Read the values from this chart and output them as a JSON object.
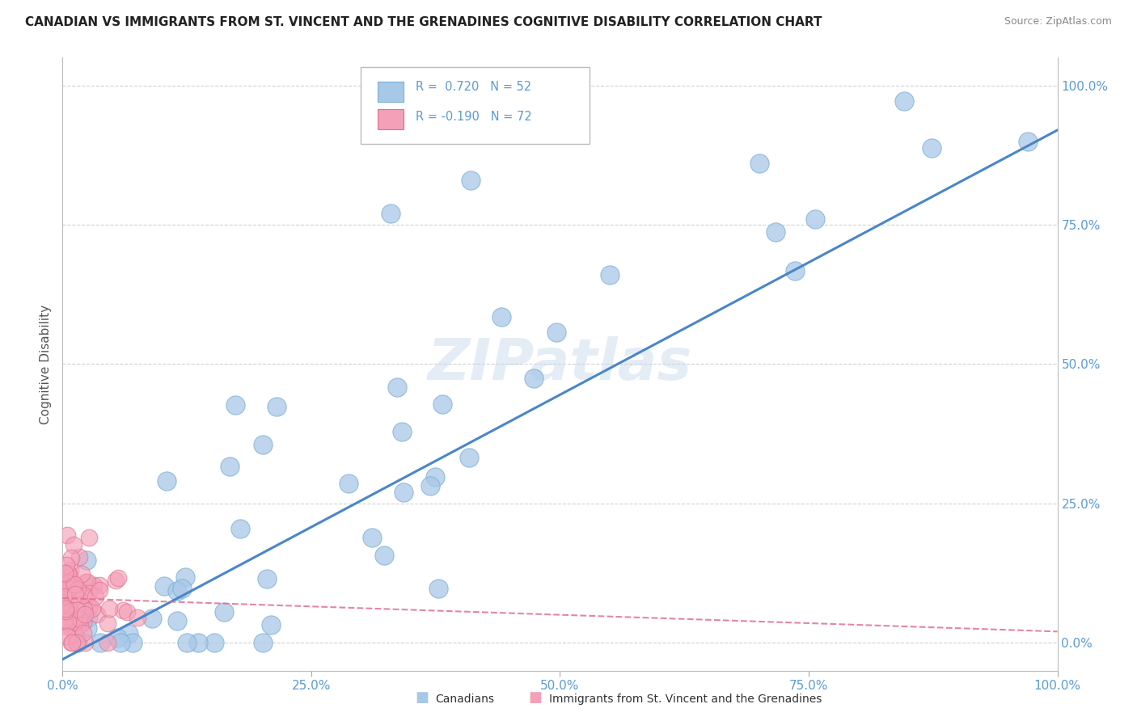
{
  "title": "CANADIAN VS IMMIGRANTS FROM ST. VINCENT AND THE GRENADINES COGNITIVE DISABILITY CORRELATION CHART",
  "source": "Source: ZipAtlas.com",
  "ylabel": "Cognitive Disability",
  "r_canadian": 0.72,
  "n_canadian": 52,
  "r_immigrant": -0.19,
  "n_immigrant": 72,
  "canadian_color": "#a8c8e8",
  "canadian_edge": "#7aafd4",
  "immigrant_color": "#f4a0b8",
  "immigrant_edge": "#e07090",
  "regression_blue": "#4a86c8",
  "regression_pink": "#e07090",
  "watermark": "ZIPatlas",
  "background_color": "#ffffff",
  "xlim": [
    0.0,
    1.0
  ],
  "ylim": [
    -0.05,
    1.05
  ],
  "xticks": [
    0.0,
    0.25,
    0.5,
    0.75,
    1.0
  ],
  "yticks": [
    0.0,
    0.25,
    0.5,
    0.75,
    1.0
  ],
  "xtick_labels": [
    "0.0%",
    "25.0%",
    "50.0%",
    "75.0%",
    "100.0%"
  ],
  "ytick_labels": [
    "0.0%",
    "25.0%",
    "50.0%",
    "75.0%",
    "100.0%"
  ],
  "tick_color": "#5b9bd5",
  "grid_color": "#cccccc",
  "title_fontsize": 11,
  "source_fontsize": 9,
  "axis_fontsize": 11,
  "legend_label_canadian": "Canadians",
  "legend_label_immigrant": "Immigrants from St. Vincent and the Grenadines",
  "blue_line_x0": 0.0,
  "blue_line_y0": -0.03,
  "blue_line_x1": 1.0,
  "blue_line_y1": 0.92,
  "pink_line_x0": 0.0,
  "pink_line_y0": 0.08,
  "pink_line_x1": 1.0,
  "pink_line_y1": 0.02
}
